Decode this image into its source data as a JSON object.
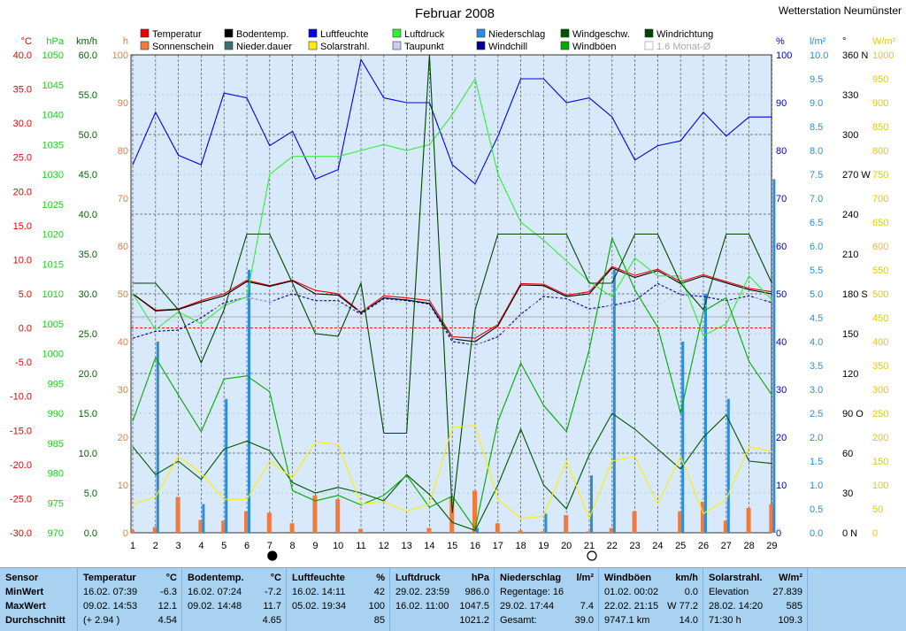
{
  "header": {
    "title": "Februar 2008",
    "station": "Wetterstation Neumünster"
  },
  "legend": [
    {
      "label": "Temperatur",
      "color": "#ee0000"
    },
    {
      "label": "Sonnenschein",
      "color": "#f07a3a"
    },
    {
      "label": "Bodentemp.",
      "color": "#000000"
    },
    {
      "label": "Nieder.dauer",
      "color": "#3a7070"
    },
    {
      "label": "Luftfeuchte",
      "color": "#0000ee"
    },
    {
      "label": "Solarstrahl.",
      "color": "#ffee00"
    },
    {
      "label": "Luftdruck",
      "color": "#33ee33"
    },
    {
      "label": "Taupunkt",
      "color": "#ccccee"
    },
    {
      "label": "Niederschlag",
      "color": "#2a8de0"
    },
    {
      "label": "Windchill",
      "color": "#000099"
    },
    {
      "label": "Windgeschw.",
      "color": "#005500"
    },
    {
      "label": "Windböen",
      "color": "#00aa00"
    },
    {
      "label": "Windrichtung",
      "color": "#004400"
    },
    {
      "label": "1.6 Monat-Ø",
      "color": "#ffffff",
      "disabled": true
    }
  ],
  "axes": {
    "temp": {
      "unit": "°C",
      "color": "#ee0000",
      "ticks": [
        "40.0",
        "35.0",
        "30.0",
        "25.0",
        "20.0",
        "15.0",
        "10.0",
        "5.0",
        "0.0",
        "-5.0",
        "-10.0",
        "-15.0",
        "-20.0",
        "-25.0",
        "-30.0"
      ]
    },
    "press": {
      "unit": "hPa",
      "color": "#22cc22",
      "ticks": [
        "1050",
        "1045",
        "1040",
        "1035",
        "1030",
        "1025",
        "1020",
        "1015",
        "1010",
        "1005",
        "1000",
        "995",
        "990",
        "985",
        "980",
        "975",
        "970"
      ]
    },
    "wind": {
      "unit": "km/h",
      "color": "#006600",
      "ticks": [
        "60.0",
        "55.0",
        "50.0",
        "45.0",
        "40.0",
        "35.0",
        "30.0",
        "25.0",
        "20.0",
        "15.0",
        "10.0",
        "5.0",
        "0.0"
      ]
    },
    "sun": {
      "unit": "h",
      "color": "#f07a3a",
      "ticks": [
        "100",
        "90",
        "80",
        "70",
        "60",
        "50",
        "40",
        "30",
        "20",
        "10",
        "0"
      ]
    },
    "hum": {
      "unit": "%",
      "color": "#0000cc",
      "ticks": [
        "100",
        "90",
        "80",
        "70",
        "60",
        "50",
        "40",
        "30",
        "20",
        "10",
        "0"
      ]
    },
    "rain": {
      "unit": "l/m²",
      "color": "#2a8de0",
      "ticks": [
        "10.0",
        "9.5",
        "9.0",
        "8.5",
        "8.0",
        "7.5",
        "7.0",
        "6.5",
        "6.0",
        "5.5",
        "5.0",
        "4.5",
        "4.0",
        "3.5",
        "3.0",
        "2.5",
        "2.0",
        "1.5",
        "1.0",
        "0.5",
        "0.0"
      ]
    },
    "dir": {
      "unit": "°",
      "color": "#000000",
      "ticks": [
        "360 N",
        "330",
        "300",
        "270 W",
        "240",
        "210",
        "180 S",
        "150",
        "120",
        "90 O",
        "60",
        "30",
        "0 N"
      ]
    },
    "solar": {
      "unit": "W/m²",
      "color": "#e8c800",
      "ticks": [
        "1000",
        "950",
        "900",
        "850",
        "800",
        "750",
        "700",
        "650",
        "600",
        "550",
        "500",
        "450",
        "400",
        "350",
        "300",
        "250",
        "200",
        "150",
        "100",
        "50",
        "0"
      ]
    }
  },
  "chart_data": {
    "type": "line",
    "title": "Februar 2008",
    "x": [
      1,
      2,
      3,
      4,
      5,
      6,
      7,
      8,
      9,
      10,
      11,
      12,
      13,
      14,
      15,
      16,
      17,
      18,
      19,
      20,
      21,
      22,
      23,
      24,
      25,
      26,
      27,
      28,
      29
    ],
    "grid": true,
    "moon_markers": [
      {
        "day": 7,
        "label": "new moon"
      },
      {
        "day": 21,
        "label": "full moon"
      }
    ],
    "series": [
      {
        "name": "Temperatur",
        "axis": "temp",
        "color": "#ee0000",
        "values": [
          5.0,
          2.6,
          2.8,
          4.0,
          5.0,
          7.0,
          6.2,
          7.0,
          5.5,
          5.0,
          2.3,
          4.7,
          4.4,
          4.0,
          -1.3,
          -1.5,
          0.5,
          6.5,
          6.4,
          4.8,
          5.3,
          9.0,
          7.7,
          8.6,
          6.8,
          7.8,
          6.8,
          5.8,
          5.3
        ]
      },
      {
        "name": "Bodentemp.",
        "axis": "temp",
        "color": "#000000",
        "values": [
          5.0,
          2.5,
          2.7,
          3.8,
          4.7,
          6.8,
          6.1,
          6.9,
          5.0,
          4.8,
          2.2,
          4.4,
          4.1,
          3.6,
          -1.6,
          -2.0,
          0.3,
          6.3,
          6.2,
          4.6,
          5.0,
          8.8,
          7.4,
          8.4,
          6.5,
          7.6,
          6.6,
          5.6,
          5.0
        ]
      },
      {
        "name": "Windchill",
        "axis": "temp",
        "color": "#000099",
        "values": [
          -1.5,
          -0.5,
          -0.3,
          1.5,
          3.7,
          4.5,
          3.8,
          5.0,
          4.0,
          4.0,
          2.0,
          4.3,
          4.0,
          3.5,
          -2.0,
          -2.5,
          -1.3,
          2.0,
          4.6,
          4.3,
          2.8,
          3.3,
          4.0,
          6.5,
          4.9,
          4.6,
          4.0,
          4.7,
          3.7
        ]
      },
      {
        "name": "Taupunkt",
        "axis": "temp",
        "color": "#ccccee",
        "values": [
          1.5,
          1.2,
          1.0,
          2.0,
          3.5,
          4.5,
          3.8,
          5.5,
          4.3,
          3.2,
          2.5,
          3.8,
          3.7,
          3.0,
          -1.6,
          -2.6,
          -1.0,
          1.5,
          5.0,
          4.0,
          2.5,
          3.3,
          3.3,
          3.3,
          5.5,
          3.3,
          3.3,
          4.5,
          4.0
        ]
      },
      {
        "name": "Luftfeuchte",
        "axis": "hum",
        "color": "#0000ee",
        "values": [
          77,
          88,
          79,
          77,
          92,
          91,
          81,
          84,
          74,
          76,
          99,
          91,
          90,
          90,
          77,
          73,
          83,
          95,
          95,
          90,
          91,
          87,
          78,
          81,
          82,
          88,
          83,
          87,
          87
        ]
      },
      {
        "name": "Luftdruck",
        "axis": "press",
        "color": "#33ee33",
        "values": [
          1010,
          1004,
          1007,
          1005,
          1008,
          1009.5,
          1030,
          1033,
          1033,
          1033,
          1034,
          1035,
          1034,
          1035,
          1040,
          1046,
          1030,
          1022,
          1019,
          1015.5,
          1012,
          1009.5,
          1016,
          1013,
          1013,
          1003,
          1005,
          1013,
          1009
        ]
      },
      {
        "name": "Windgeschw.",
        "axis": "wind",
        "color": "#005500",
        "values": [
          10.8,
          7.3,
          9.0,
          6.7,
          10.5,
          11.5,
          10.3,
          6.3,
          5.0,
          5.7,
          5.0,
          4.0,
          7.3,
          4.8,
          1.3,
          0.3,
          6.0,
          13.0,
          6.0,
          3.0,
          9.8,
          15.0,
          13.0,
          10.5,
          8.0,
          12.0,
          14.8,
          9.0,
          8.7
        ]
      },
      {
        "name": "Windböen",
        "axis": "wind",
        "color": "#00aa00",
        "values": [
          14.0,
          22.0,
          17.3,
          12.7,
          19.3,
          19.7,
          17.7,
          5.3,
          4.0,
          4.7,
          3.5,
          4.7,
          7.2,
          3.2,
          4.6,
          0.5,
          14.0,
          21.3,
          16.0,
          12.7,
          23.0,
          37.0,
          30.5,
          25.8,
          15.0,
          27.8,
          29.5,
          21.5,
          17.3
        ]
      },
      {
        "name": "Windrichtung",
        "axis": "dir",
        "color": "#004400",
        "values": [
          188,
          188,
          168,
          128,
          168,
          225,
          225,
          188,
          150,
          148,
          188,
          75,
          75,
          360,
          15,
          168,
          225,
          225,
          225,
          225,
          188,
          188,
          225,
          225,
          188,
          168,
          225,
          225,
          188
        ]
      },
      {
        "name": "Solarstrahl.",
        "axis": "solar",
        "color": "#ffee00",
        "values": [
          60,
          75,
          160,
          125,
          70,
          70,
          150,
          115,
          190,
          185,
          60,
          65,
          45,
          60,
          220,
          225,
          70,
          30,
          35,
          150,
          30,
          150,
          160,
          60,
          160,
          40,
          70,
          180,
          170
        ]
      },
      {
        "name": "Sonnenschein",
        "axis": "sun",
        "type": "bar",
        "color": "#f07a3a",
        "values": [
          0.6,
          1.2,
          7.5,
          2.7,
          2.5,
          4.5,
          4.2,
          2.0,
          7.8,
          7.0,
          0.8,
          0,
          0,
          1.0,
          7.5,
          8.8,
          2.0,
          0.5,
          0.3,
          3.7,
          0.3,
          1.0,
          4.5,
          0,
          4.5,
          6.5,
          2.5,
          5.2,
          6.0
        ]
      },
      {
        "name": "Niederschlag",
        "axis": "rain",
        "type": "bar",
        "color": "#2a8de0",
        "values": [
          0,
          4.0,
          0,
          0.6,
          2.8,
          5.5,
          0,
          0,
          0,
          0,
          0,
          0,
          0,
          0,
          0,
          0.1,
          0,
          0,
          0.4,
          0,
          1.2,
          5.5,
          0,
          0,
          4.0,
          5.0,
          2.8,
          0,
          7.4
        ]
      }
    ]
  },
  "stats": {
    "labels": {
      "sensor": "Sensor",
      "min": "MinWert",
      "max": "MaxWert",
      "avg": "Durchschnitt"
    },
    "temp": {
      "title": "Temperatur",
      "unit": "°C",
      "min_date": "16.02.  07:39",
      "min_val": "-6.3",
      "max_date": "09.02.  14:53",
      "max_val": "12.1",
      "avg_note": "(+ 2.94 )",
      "avg_val": "4.54"
    },
    "soil": {
      "title": "Bodentemp.",
      "unit": "°C",
      "min_date": "16.02.  07:24",
      "min_val": "-7.2",
      "max_date": "09.02.  14:48",
      "max_val": "11.7",
      "avg_val": "4.65"
    },
    "hum": {
      "title": "Luftfeuchte",
      "unit": "%",
      "min_date": "16.02.  14:11",
      "min_val": "42",
      "max_date": "05.02.  19:34",
      "max_val": "100",
      "avg_val": "85"
    },
    "press": {
      "title": "Luftdruck",
      "unit": "hPa",
      "min_date": "29.02.  23:59",
      "min_val": "986.0",
      "max_date": "16.02.  11:00",
      "max_val": "1047.5",
      "avg_val": "1021.2"
    },
    "rain": {
      "title": "Niederschlag",
      "unit": "l/m²",
      "row1": "Regentage: 16",
      "max_date": "29.02.  17:44",
      "max_val": "7.4",
      "row3": "Gesamt:",
      "avg_val": "39.0"
    },
    "gust": {
      "title": "Windböen",
      "unit": "km/h",
      "min_date": "01.02.  00:02",
      "min_val": "0.0",
      "max_date": "22.02.  21:15",
      "max_val": "W 77.2",
      "row3": "9747.1 km",
      "avg_val": "14.0"
    },
    "solar": {
      "title": "Solarstrahl.",
      "unit": "W/m²",
      "row1": "Elevation",
      "min_val": "27.839",
      "max_date": "28.02.  14:20",
      "max_val": "585",
      "row3": "71:30 h",
      "avg_val": "109.3"
    }
  }
}
